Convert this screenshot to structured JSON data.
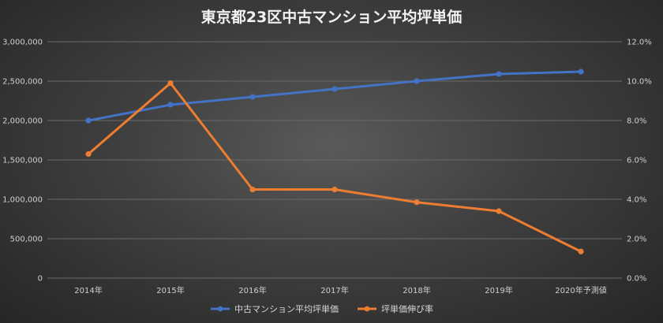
{
  "chart_data": {
    "type": "line",
    "title": "東京都23区中古マンション平均坪単価",
    "categories": [
      "2014年",
      "2015年",
      "2016年",
      "2017年",
      "2018年",
      "2019年",
      "2020年予測値"
    ],
    "series": [
      {
        "name": "中古マンション平均坪単価",
        "axis": "left",
        "color": "#4472c4",
        "values": [
          2000000,
          2200000,
          2300000,
          2400000,
          2500000,
          2590000,
          2620000
        ]
      },
      {
        "name": "坪単価伸び率",
        "axis": "right",
        "color": "#ed7d31",
        "values": [
          6.3,
          9.9,
          4.5,
          4.5,
          3.85,
          3.4,
          1.35
        ]
      }
    ],
    "y_left": {
      "min": 0,
      "max": 3000000,
      "ticks": [
        "0",
        "500,000",
        "1,000,000",
        "1,500,000",
        "2,000,000",
        "2,500,000",
        "3,000,000"
      ]
    },
    "y_right": {
      "min": 0,
      "max": 12,
      "ticks": [
        "0.0%",
        "2.0%",
        "4.0%",
        "6.0%",
        "8.0%",
        "10.0%",
        "12.0%"
      ]
    },
    "grid": true,
    "legend": "bottom"
  }
}
